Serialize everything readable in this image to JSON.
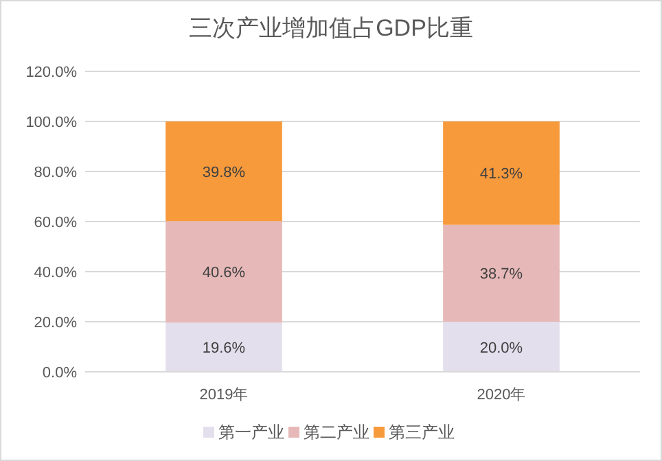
{
  "chart_data": {
    "type": "bar",
    "stacked": true,
    "title": "三次产业增加值占GDP比重",
    "categories": [
      "2019年",
      "2020年"
    ],
    "series": [
      {
        "name": "第一产业",
        "color": "#e4dfec",
        "values": [
          19.6,
          20.0
        ],
        "value_labels": [
          "19.6%",
          "20.0%"
        ]
      },
      {
        "name": "第二产业",
        "color": "#e6b9b8",
        "values": [
          40.6,
          38.7
        ],
        "value_labels": [
          "40.6%",
          "38.7%"
        ]
      },
      {
        "name": "第三产业",
        "color": "#f79a3c",
        "values": [
          39.8,
          41.3
        ],
        "value_labels": [
          "39.8%",
          "41.3%"
        ]
      }
    ],
    "ylim": [
      0,
      120
    ],
    "yticks": [
      {
        "value": 0,
        "label": "0.0%"
      },
      {
        "value": 20,
        "label": "20.0%"
      },
      {
        "value": 40,
        "label": "40.0%"
      },
      {
        "value": 60,
        "label": "60.0%"
      },
      {
        "value": 80,
        "label": "80.0%"
      },
      {
        "value": 100,
        "label": "100.0%"
      },
      {
        "value": 120,
        "label": "120.0%"
      }
    ],
    "grid": "y",
    "legend": "bottom"
  }
}
